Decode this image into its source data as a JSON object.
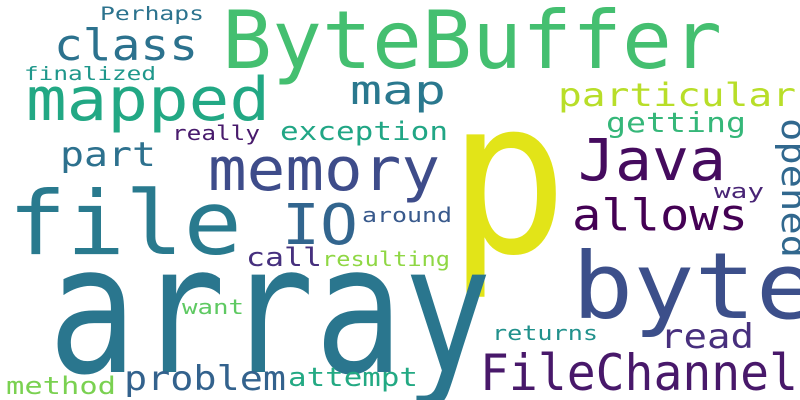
{
  "words": [
    {
      "name": "word-p",
      "text": "p",
      "color": "#e2e418"
    },
    {
      "name": "word-array",
      "text": "array",
      "color": "#2a768e"
    },
    {
      "name": "word-bytebuffer",
      "text": "ByteBuffer",
      "color": "#44bf70"
    },
    {
      "name": "word-file",
      "text": "file",
      "color": "#297a8e"
    },
    {
      "name": "word-byte",
      "text": "byte",
      "color": "#3c4f8a"
    },
    {
      "name": "word-memory",
      "text": "memory",
      "color": "#3e4c8a"
    },
    {
      "name": "word-mapped",
      "text": "mapped",
      "color": "#22a884"
    },
    {
      "name": "word-java",
      "text": "Java",
      "color": "#450b5e"
    },
    {
      "name": "word-filechannel",
      "text": "FileChannel",
      "color": "#48186a"
    },
    {
      "name": "word-io",
      "text": "IO",
      "color": "#32658e"
    },
    {
      "name": "word-allows",
      "text": "allows",
      "color": "#440154"
    },
    {
      "name": "word-class",
      "text": "class",
      "color": "#2c728e"
    },
    {
      "name": "word-particular",
      "text": "particular",
      "color": "#b8de29"
    },
    {
      "name": "word-opened",
      "text": "opened",
      "color": "#31688e"
    },
    {
      "name": "word-map",
      "text": "map",
      "color": "#2a788e"
    },
    {
      "name": "word-problem",
      "text": "problem",
      "color": "#33628d"
    },
    {
      "name": "word-read",
      "text": "read",
      "color": "#472f7d"
    },
    {
      "name": "word-part",
      "text": "part",
      "color": "#2d718e"
    },
    {
      "name": "word-getting",
      "text": "getting",
      "color": "#35b779"
    },
    {
      "name": "word-exception",
      "text": "exception",
      "color": "#21a685"
    },
    {
      "name": "word-attempt",
      "text": "attempt",
      "color": "#23a983"
    },
    {
      "name": "word-method",
      "text": "method",
      "color": "#7ad151"
    },
    {
      "name": "word-call",
      "text": "call",
      "color": "#46307e"
    },
    {
      "name": "word-resulting",
      "text": "resulting",
      "color": "#8fd744"
    },
    {
      "name": "word-around",
      "text": "around",
      "color": "#38598c"
    },
    {
      "name": "word-returns",
      "text": "returns",
      "color": "#21918c"
    },
    {
      "name": "word-really",
      "text": "really",
      "color": "#481a6c"
    },
    {
      "name": "word-perhaps",
      "text": "Perhaps",
      "color": "#2c738e"
    },
    {
      "name": "word-finalized",
      "text": "finalized",
      "color": "#1f978b"
    },
    {
      "name": "word-want",
      "text": "want",
      "color": "#5ec962"
    },
    {
      "name": "word-way",
      "text": "way",
      "color": "#482475"
    }
  ]
}
